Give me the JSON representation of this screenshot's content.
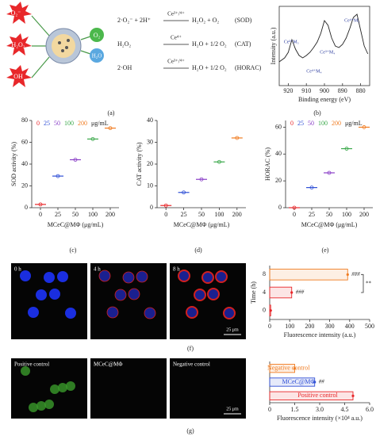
{
  "schematic": {
    "ros": [
      "O₂⁻",
      "H₂O₂",
      "OH"
    ],
    "products": [
      "O₂",
      "H₂O"
    ],
    "reactions": [
      {
        "lhs": "2·O₂⁻ + 2H⁺",
        "catalyst": "Ce³⁺/⁴⁺",
        "rhs": "H₂O₂ + O₂",
        "name": "(SOD)"
      },
      {
        "lhs": "H₂O₂",
        "catalyst": "Ce⁴⁺",
        "rhs": "H₂O + 1/2 O₂",
        "name": "(CAT)"
      },
      {
        "lhs": "2·OH",
        "catalyst": "Ce³⁺/⁴⁺",
        "rhs": "H₂O + 1/2 O₂",
        "name": "(HORAC)"
      }
    ]
  },
  "micrographs": {
    "f": {
      "labels": [
        "0 h",
        "4 h",
        "8 h"
      ],
      "scale": "25 μm"
    },
    "g": {
      "labels": [
        "Positive control",
        "MCeC@MΦ",
        "Negative control"
      ],
      "scale": "25 μm"
    }
  },
  "panel_labels": [
    "(a)",
    "(b)",
    "(c)",
    "(d)",
    "(e)",
    "(f)",
    "(g)"
  ],
  "chart_data": [
    {
      "type": "line",
      "xlabel": "Binding energy (eV)",
      "ylabel": "Intensity (a.u.)",
      "xlim": [
        925,
        875
      ],
      "xticks": [
        920,
        910,
        900,
        890,
        880
      ],
      "ylim": [
        0,
        100
      ],
      "color": "#222222",
      "x": [
        925,
        922,
        920,
        918,
        916,
        914,
        912,
        910,
        908,
        906,
        904,
        902,
        900,
        898,
        896,
        894,
        892,
        890,
        888,
        886,
        884,
        882,
        880,
        878,
        876
      ],
      "values": [
        30,
        35,
        42,
        58,
        46,
        38,
        35,
        38,
        42,
        48,
        55,
        66,
        82,
        76,
        60,
        50,
        48,
        52,
        60,
        72,
        86,
        90,
        70,
        50,
        40
      ],
      "annotations": [
        "Ce⁴⁺M₅",
        "Ce³⁺M₅",
        "Ce³⁺M₄",
        "Ce⁴⁺M₄"
      ]
    },
    {
      "type": "dot",
      "xlabel": "MCeC@MΦ (μg/mL)",
      "ylabel": "SOD activity (%)",
      "categories": [
        "0",
        "25",
        "50",
        "100",
        "200"
      ],
      "values": [
        3,
        29,
        44,
        63,
        73
      ],
      "colors": [
        "#e8272a",
        "#2f4fd6",
        "#8a3fc7",
        "#3aa84a",
        "#f07b20"
      ],
      "legend_unit": "μg/mL",
      "ylim": [
        0,
        80
      ],
      "yticks": [
        0,
        20,
        40,
        60,
        80
      ]
    },
    {
      "type": "dot",
      "xlabel": "MCeC@MΦ (μg/mL)",
      "ylabel": "CAT activity (%)",
      "categories": [
        "0",
        "25",
        "50",
        "100",
        "200"
      ],
      "values": [
        1,
        7,
        13,
        21,
        32
      ],
      "colors": [
        "#e8272a",
        "#2f4fd6",
        "#8a3fc7",
        "#3aa84a",
        "#f07b20"
      ],
      "ylim": [
        0,
        40
      ],
      "yticks": [
        0,
        10,
        20,
        30,
        40
      ]
    },
    {
      "type": "dot",
      "xlabel": "MCeC@MΦ (μg/mL)",
      "ylabel": "HORAC (%)",
      "categories": [
        "0",
        "25",
        "50",
        "100",
        "200"
      ],
      "values": [
        0,
        15,
        26,
        44,
        60
      ],
      "colors": [
        "#e8272a",
        "#2f4fd6",
        "#8a3fc7",
        "#3aa84a",
        "#f07b20"
      ],
      "legend_unit": "μg/mL",
      "ylim": [
        0,
        65
      ],
      "yticks": [
        0,
        20,
        40,
        60
      ]
    },
    {
      "type": "hbar",
      "xlabel": "Fluorescence intensity (a.u.)",
      "ylabel": "Time (h)",
      "categories": [
        "0",
        "4",
        "8"
      ],
      "values": [
        5,
        110,
        390
      ],
      "colors": [
        "#e8272a",
        "#e8272a",
        "#f07b20"
      ],
      "category_labels": "axis",
      "value_annotations": [
        null,
        "###",
        "###"
      ],
      "bracket": "**",
      "xlim": [
        0,
        500
      ],
      "xticks": [
        0,
        100,
        200,
        300,
        400,
        500
      ]
    },
    {
      "type": "hbar",
      "xlabel": "Fluorescence intensity (×10⁴ a.u.)",
      "categories": [
        "Positive control",
        "MCeC@MΦ",
        "Negative control"
      ],
      "values": [
        5.0,
        2.7,
        1.5
      ],
      "colors": [
        "#e8272a",
        "#2f4fd6",
        "#f07b20"
      ],
      "category_labels": "inside",
      "value_annotations": [
        null,
        "##",
        null
      ],
      "xlim": [
        0,
        6
      ],
      "xticks": [
        0,
        1.5,
        {
          "value": 3,
          "label": "3.0"
        },
        4.5,
        {
          "value": 6,
          "label": "6.0"
        }
      ]
    }
  ]
}
